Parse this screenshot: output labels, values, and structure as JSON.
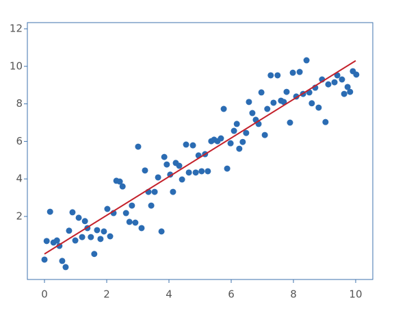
{
  "chart_data": {
    "type": "scatter",
    "x": [
      0,
      0.07,
      0.18,
      0.29,
      0.4,
      0.48,
      0.57,
      0.68,
      0.79,
      0.9,
      0.99,
      1.1,
      1.21,
      1.3,
      1.38,
      1.49,
      1.6,
      1.69,
      1.8,
      1.91,
      2.02,
      2.11,
      2.22,
      2.31,
      2.42,
      2.51,
      2.62,
      2.73,
      2.81,
      2.92,
      3.01,
      3.12,
      3.23,
      3.34,
      3.43,
      3.54,
      3.65,
      3.76,
      3.85,
      3.93,
      4.04,
      4.13,
      4.22,
      4.33,
      4.42,
      4.55,
      4.64,
      4.77,
      4.86,
      4.95,
      5.05,
      5.16,
      5.25,
      5.36,
      5.45,
      5.56,
      5.67,
      5.76,
      5.87,
      5.98,
      6.09,
      6.18,
      6.26,
      6.37,
      6.48,
      6.57,
      6.68,
      6.79,
      6.88,
      6.97,
      7.08,
      7.16,
      7.27,
      7.36,
      7.49,
      7.6,
      7.69,
      7.78,
      7.89,
      7.98,
      8.09,
      8.2,
      8.31,
      8.42,
      8.51,
      8.59,
      8.7,
      8.81,
      8.92,
      9.03,
      9.12,
      9.32,
      9.41,
      9.56,
      9.63,
      9.74,
      9.82,
      9.91,
      10.02
    ],
    "values": [
      -0.3,
      0.69,
      2.25,
      0.61,
      0.72,
      0.43,
      -0.37,
      -0.7,
      1.24,
      2.22,
      0.72,
      1.93,
      0.9,
      1.75,
      1.38,
      0.9,
      0,
      1.27,
      0.8,
      1.2,
      2.4,
      0.94,
      2.18,
      3.9,
      3.86,
      3.6,
      2.18,
      1.71,
      2.58,
      1.67,
      5.72,
      1.38,
      4.45,
      3.31,
      2.58,
      3.31,
      4.08,
      1.2,
      5.17,
      4.77,
      4.23,
      3.31,
      4.85,
      4.7,
      3.97,
      5.83,
      4.34,
      5.79,
      4.34,
      5.25,
      4.41,
      5.32,
      4.41,
      6.01,
      6.09,
      6.01,
      6.16,
      7.73,
      4.55,
      5.9,
      6.56,
      6.93,
      5.61,
      5.97,
      6.45,
      8.1,
      7.51,
      7.15,
      6.93,
      8.61,
      6.34,
      7.73,
      9.52,
      8.06,
      9.52,
      8.17,
      8.1,
      8.64,
      7.0,
      9.66,
      8.39,
      9.7,
      8.53,
      10.32,
      8.61,
      8.03,
      8.86,
      7.8,
      9.3,
      7.03,
      9.04,
      9.15,
      9.52,
      9.3,
      8.53,
      8.9,
      8.64,
      9.74,
      9.56
    ],
    "color": "#2b6cb3",
    "fit": {
      "x": [
        0,
        10
      ],
      "values": [
        0,
        10.3
      ],
      "color": "#c4212b"
    },
    "xlim": [
      -0.55,
      10.55
    ],
    "ylim": [
      -1.36,
      12.33
    ],
    "xticks": [
      0,
      2,
      4,
      6,
      8,
      10
    ],
    "yticks": [
      2,
      4,
      6,
      8,
      10,
      12
    ]
  }
}
